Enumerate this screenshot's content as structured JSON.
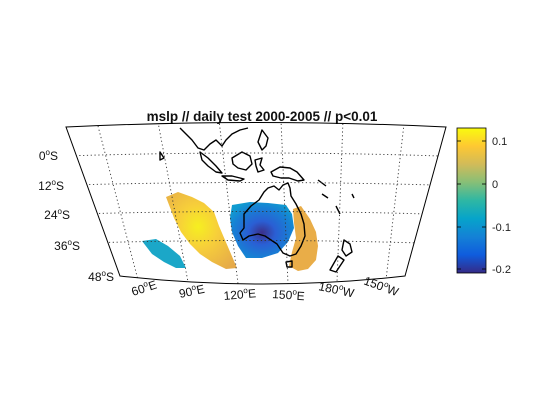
{
  "map": {
    "title": "mslp // daily test 2000-2005 // p<0.01",
    "latitude_labels": [
      {
        "deg": "0",
        "hemi": "S"
      },
      {
        "deg": "12",
        "hemi": "S"
      },
      {
        "deg": "24",
        "hemi": "S"
      },
      {
        "deg": "36",
        "hemi": "S"
      },
      {
        "deg": "48",
        "hemi": "S"
      }
    ],
    "longitude_labels": [
      {
        "deg": "60",
        "hemi": "E"
      },
      {
        "deg": "90",
        "hemi": "E"
      },
      {
        "deg": "120",
        "hemi": "E"
      },
      {
        "deg": "150",
        "hemi": "E"
      },
      {
        "deg": "180",
        "hemi": "W"
      },
      {
        "deg": "150",
        "hemi": "W"
      }
    ],
    "gridlines": "dotted"
  },
  "colorbar": {
    "ticks": [
      "0.1",
      "0",
      "-0.1",
      "-0.2"
    ],
    "colormap": "parula",
    "colors": [
      "#352a87",
      "#0f5cdd",
      "#1481d6",
      "#06a4ca",
      "#2eb7a4",
      "#87bf77",
      "#d1bb59",
      "#fec832",
      "#f9fb0e"
    ]
  },
  "colors": {
    "coastline": "#000000",
    "grid": "#333333"
  }
}
